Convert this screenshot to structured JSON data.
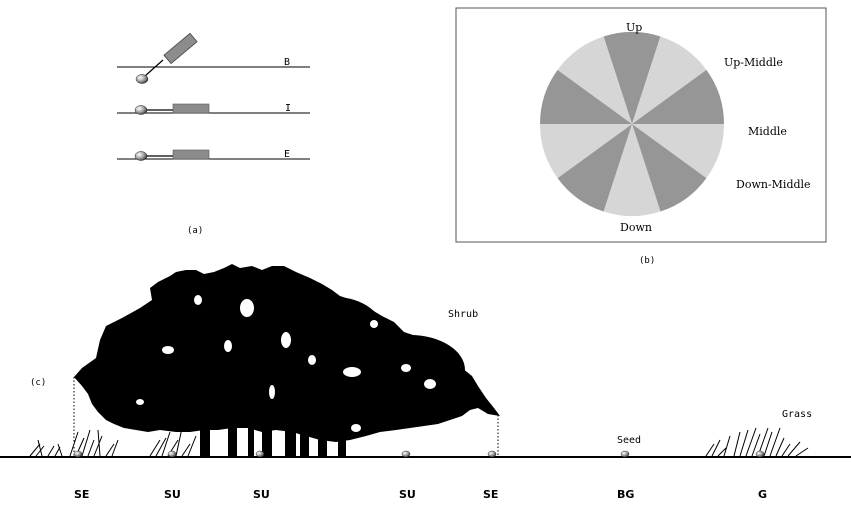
{
  "panel_a": {
    "caption": "(a)",
    "lines": [
      {
        "label": "B"
      },
      {
        "label": "I"
      },
      {
        "label": "E"
      }
    ]
  },
  "panel_b": {
    "caption": "(b)",
    "labels": {
      "up": "Up",
      "up_middle": "Up-Middle",
      "middle": "Middle",
      "down_middle": "Down-Middle",
      "down": "Down"
    },
    "colors": {
      "dark": "#969696",
      "light": "#d6d6d6",
      "border": "#555555"
    }
  },
  "panel_c": {
    "caption": "(c)",
    "shrub_label": "Shrub",
    "grass_label": "Grass",
    "seed_label": "Seed",
    "ground_labels": [
      "SE",
      "SU",
      "SU",
      "SU",
      "SE",
      "BG",
      "G"
    ]
  }
}
